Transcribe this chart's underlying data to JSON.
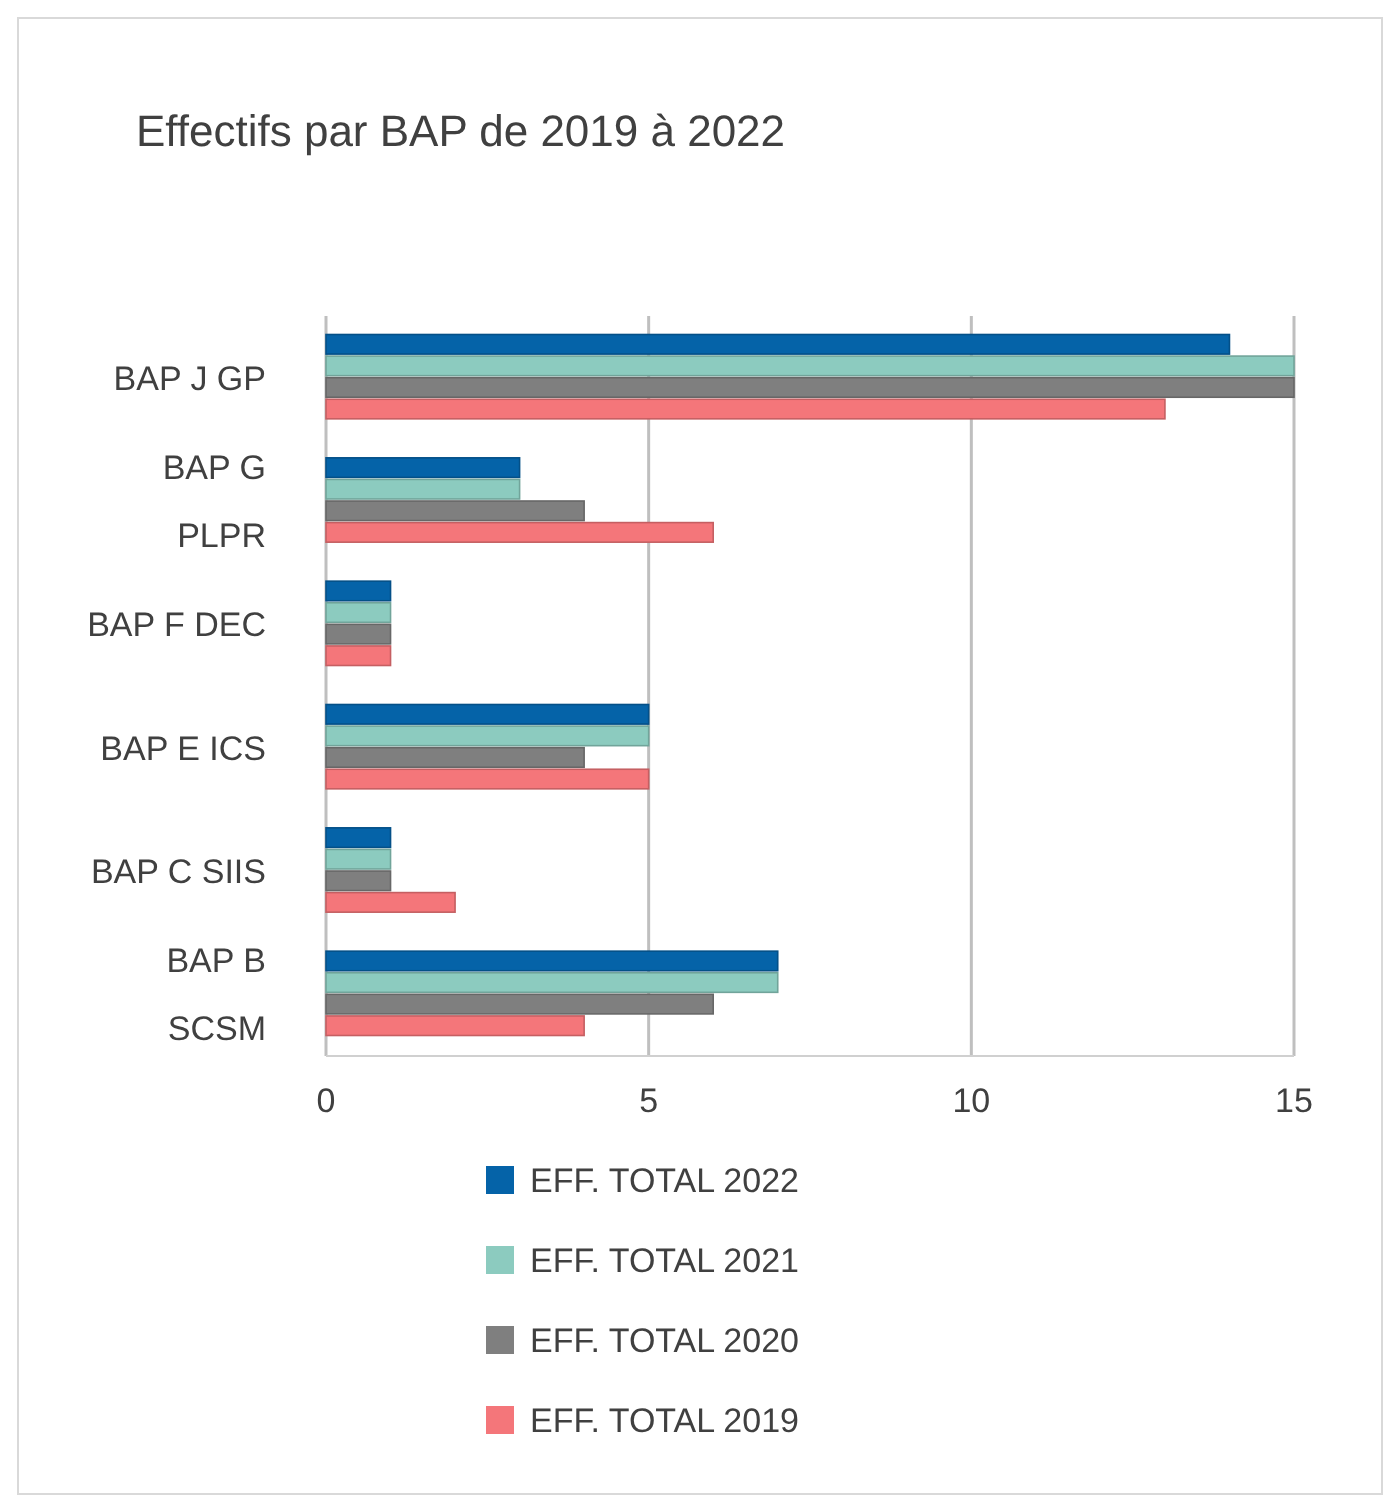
{
  "chart_data": {
    "type": "bar",
    "orientation": "horizontal",
    "title": "Effectifs par BAP de 2019 à 2022",
    "categories": [
      "BAP J GP",
      "BAP G\nPLPR",
      "BAP F DEC",
      "BAP E ICS",
      "BAP C SIIS",
      "BAP B\nSCSM"
    ],
    "series": [
      {
        "name": "EFF. TOTAL 2022",
        "color": "#0563a8",
        "values": [
          14,
          3,
          1,
          5,
          1,
          7
        ]
      },
      {
        "name": "EFF. TOTAL 2021",
        "color": "#8ccbbf",
        "values": [
          15,
          3,
          1,
          5,
          1,
          7
        ]
      },
      {
        "name": "EFF. TOTAL 2020",
        "color": "#7f7f7f",
        "values": [
          15,
          4,
          1,
          4,
          1,
          6
        ]
      },
      {
        "name": "EFF. TOTAL 2019",
        "color": "#f4767a",
        "values": [
          13,
          6,
          1,
          5,
          2,
          4
        ]
      }
    ],
    "xlim": [
      0,
      15
    ],
    "xticks": [
      0,
      5,
      10,
      15
    ],
    "grid": "x",
    "legend": "bottom"
  }
}
